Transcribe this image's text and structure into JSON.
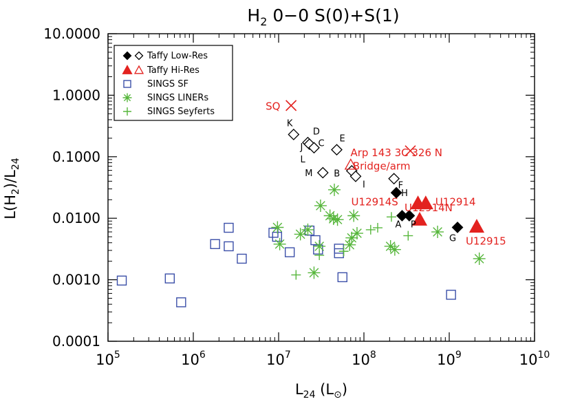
{
  "chart_data": {
    "type": "scatter",
    "title": {
      "base": "H",
      "sub": "2",
      "rest": " 0−0 S(0)+S(1)"
    },
    "xlabel": {
      "base": "L",
      "sub": "24",
      "rest": " (L",
      "sym": "⊙",
      "end": ")"
    },
    "ylabel": {
      "p1": "L(H",
      "sub1": "2",
      "p2": ")/L",
      "sub2": "24"
    },
    "xscale": "log",
    "yscale": "log",
    "xlim": [
      100000,
      10000000000
    ],
    "ylim": [
      0.0001,
      10
    ],
    "x_ticks": [
      {
        "value": 100000,
        "base": "10",
        "exp": "5"
      },
      {
        "value": 1000000,
        "base": "10",
        "exp": "6"
      },
      {
        "value": 10000000,
        "base": "10",
        "exp": "7"
      },
      {
        "value": 100000000,
        "base": "10",
        "exp": "8"
      },
      {
        "value": 1000000000,
        "base": "10",
        "exp": "9"
      },
      {
        "value": 10000000000,
        "base": "10",
        "exp": "10"
      }
    ],
    "y_ticks": [
      {
        "value": 0.0001,
        "label": "0.0001"
      },
      {
        "value": 0.001,
        "label": "0.0010"
      },
      {
        "value": 0.01,
        "label": "0.0100"
      },
      {
        "value": 0.1,
        "label": "0.1000"
      },
      {
        "value": 1,
        "label": "1.0000"
      },
      {
        "value": 10,
        "label": "10.0000"
      }
    ],
    "legend_position": "top-left",
    "legend": [
      {
        "marker": "diamond-pair",
        "text": "Taffy Low-Res"
      },
      {
        "marker": "triangle-pair",
        "text": "Taffy Hi-Res"
      },
      {
        "marker": "square",
        "text": "SINGS SF"
      },
      {
        "marker": "asterisk",
        "text": "SINGS LINERs"
      },
      {
        "marker": "plus",
        "text": "SINGS Seyferts"
      }
    ],
    "colors": {
      "taffy": "#000000",
      "hires": "#e3221f",
      "sf": "#3b4fa8",
      "green": "#56b63b",
      "label": "#e3221f"
    },
    "series": [
      {
        "name": "Taffy Low-Res",
        "points": [
          {
            "x": 15000000,
            "y": 0.23,
            "label": "K"
          },
          {
            "x": 22000000,
            "y": 0.17,
            "label": "J"
          },
          {
            "x": 23000000,
            "y": 0.16,
            "label": "D"
          },
          {
            "x": 26000000,
            "y": 0.14,
            "label": "C"
          },
          {
            "x": 48000000,
            "y": 0.13,
            "label": "E"
          },
          {
            "x": 33000000,
            "y": 0.055,
            "label": "M"
          },
          {
            "x": 72000000,
            "y": 0.059,
            "label": "B"
          },
          {
            "x": 80000000,
            "y": 0.048,
            "label": "I"
          },
          {
            "x": 225000000,
            "y": 0.044,
            "label": "F"
          }
        ],
        "filled_points": [
          {
            "x": 240000000,
            "y": 0.026,
            "label": "H"
          },
          {
            "x": 280000000,
            "y": 0.011,
            "label": "A"
          },
          {
            "x": 340000000,
            "y": 0.011,
            "label": "P"
          },
          {
            "x": 1250000000,
            "y": 0.0071,
            "label": "G"
          }
        ],
        "extra_labels": [
          {
            "text": "L"
          }
        ]
      },
      {
        "name": "Taffy Hi-Res",
        "points": [
          {
            "x": 70000000,
            "y": 0.074,
            "label": "Bridge/arm"
          }
        ],
        "filled_points": [
          {
            "x": 430000000,
            "y": 0.0175,
            "label": "U12914S"
          },
          {
            "x": 530000000,
            "y": 0.0175,
            "label": "U12914"
          },
          {
            "x": 450000000,
            "y": 0.0095,
            "label": "U12914N"
          },
          {
            "x": 2100000000,
            "y": 0.0073,
            "label": "U12915"
          }
        ]
      },
      {
        "name": "SQ / Arp 143 / 3C 326 N",
        "marker": "cross",
        "points": [
          {
            "x": 14000000,
            "y": 0.68,
            "label": "SQ"
          },
          {
            "x": 350000000,
            "y": 0.125,
            "label": "Arp 143  3C 326 N"
          }
        ]
      },
      {
        "name": "SINGS SF",
        "points": [
          {
            "x": 145000,
            "y": 0.00097
          },
          {
            "x": 530000,
            "y": 0.00105
          },
          {
            "x": 720000,
            "y": 0.00043
          },
          {
            "x": 1800000,
            "y": 0.0038
          },
          {
            "x": 2600000,
            "y": 0.0035
          },
          {
            "x": 2600000,
            "y": 0.007
          },
          {
            "x": 3700000,
            "y": 0.0022
          },
          {
            "x": 8700000,
            "y": 0.0058
          },
          {
            "x": 9600000,
            "y": 0.005
          },
          {
            "x": 13500000,
            "y": 0.0028
          },
          {
            "x": 23000000,
            "y": 0.0063
          },
          {
            "x": 27000000,
            "y": 0.0044
          },
          {
            "x": 29000000,
            "y": 0.0031
          },
          {
            "x": 51000000,
            "y": 0.0027
          },
          {
            "x": 51000000,
            "y": 0.0032
          },
          {
            "x": 56000000,
            "y": 0.0011
          },
          {
            "x": 1050000000,
            "y": 0.00057
          }
        ]
      },
      {
        "name": "SINGS LINERs",
        "points": [
          {
            "x": 9700000,
            "y": 0.0071
          },
          {
            "x": 10300000,
            "y": 0.0038
          },
          {
            "x": 18000000,
            "y": 0.0055
          },
          {
            "x": 22000000,
            "y": 0.0065
          },
          {
            "x": 26000000,
            "y": 0.0013
          },
          {
            "x": 30000000,
            "y": 0.0035
          },
          {
            "x": 31000000,
            "y": 0.016
          },
          {
            "x": 40000000,
            "y": 0.011
          },
          {
            "x": 44000000,
            "y": 0.0098
          },
          {
            "x": 45000000,
            "y": 0.029
          },
          {
            "x": 49000000,
            "y": 0.0095
          },
          {
            "x": 68000000,
            "y": 0.0037
          },
          {
            "x": 72000000,
            "y": 0.0048
          },
          {
            "x": 76000000,
            "y": 0.011
          },
          {
            "x": 83000000,
            "y": 0.0057
          },
          {
            "x": 205000000,
            "y": 0.0035
          },
          {
            "x": 230000000,
            "y": 0.0031
          },
          {
            "x": 730000000,
            "y": 0.006
          },
          {
            "x": 2250000000,
            "y": 0.0022
          }
        ]
      },
      {
        "name": "SINGS Seyferts",
        "points": [
          {
            "x": 16000000,
            "y": 0.0012
          },
          {
            "x": 30000000,
            "y": 0.0025
          },
          {
            "x": 58000000,
            "y": 0.0029
          },
          {
            "x": 120000000,
            "y": 0.0065
          },
          {
            "x": 145000000,
            "y": 0.007
          },
          {
            "x": 210000000,
            "y": 0.0105
          },
          {
            "x": 330000000,
            "y": 0.0052
          }
        ]
      }
    ]
  }
}
